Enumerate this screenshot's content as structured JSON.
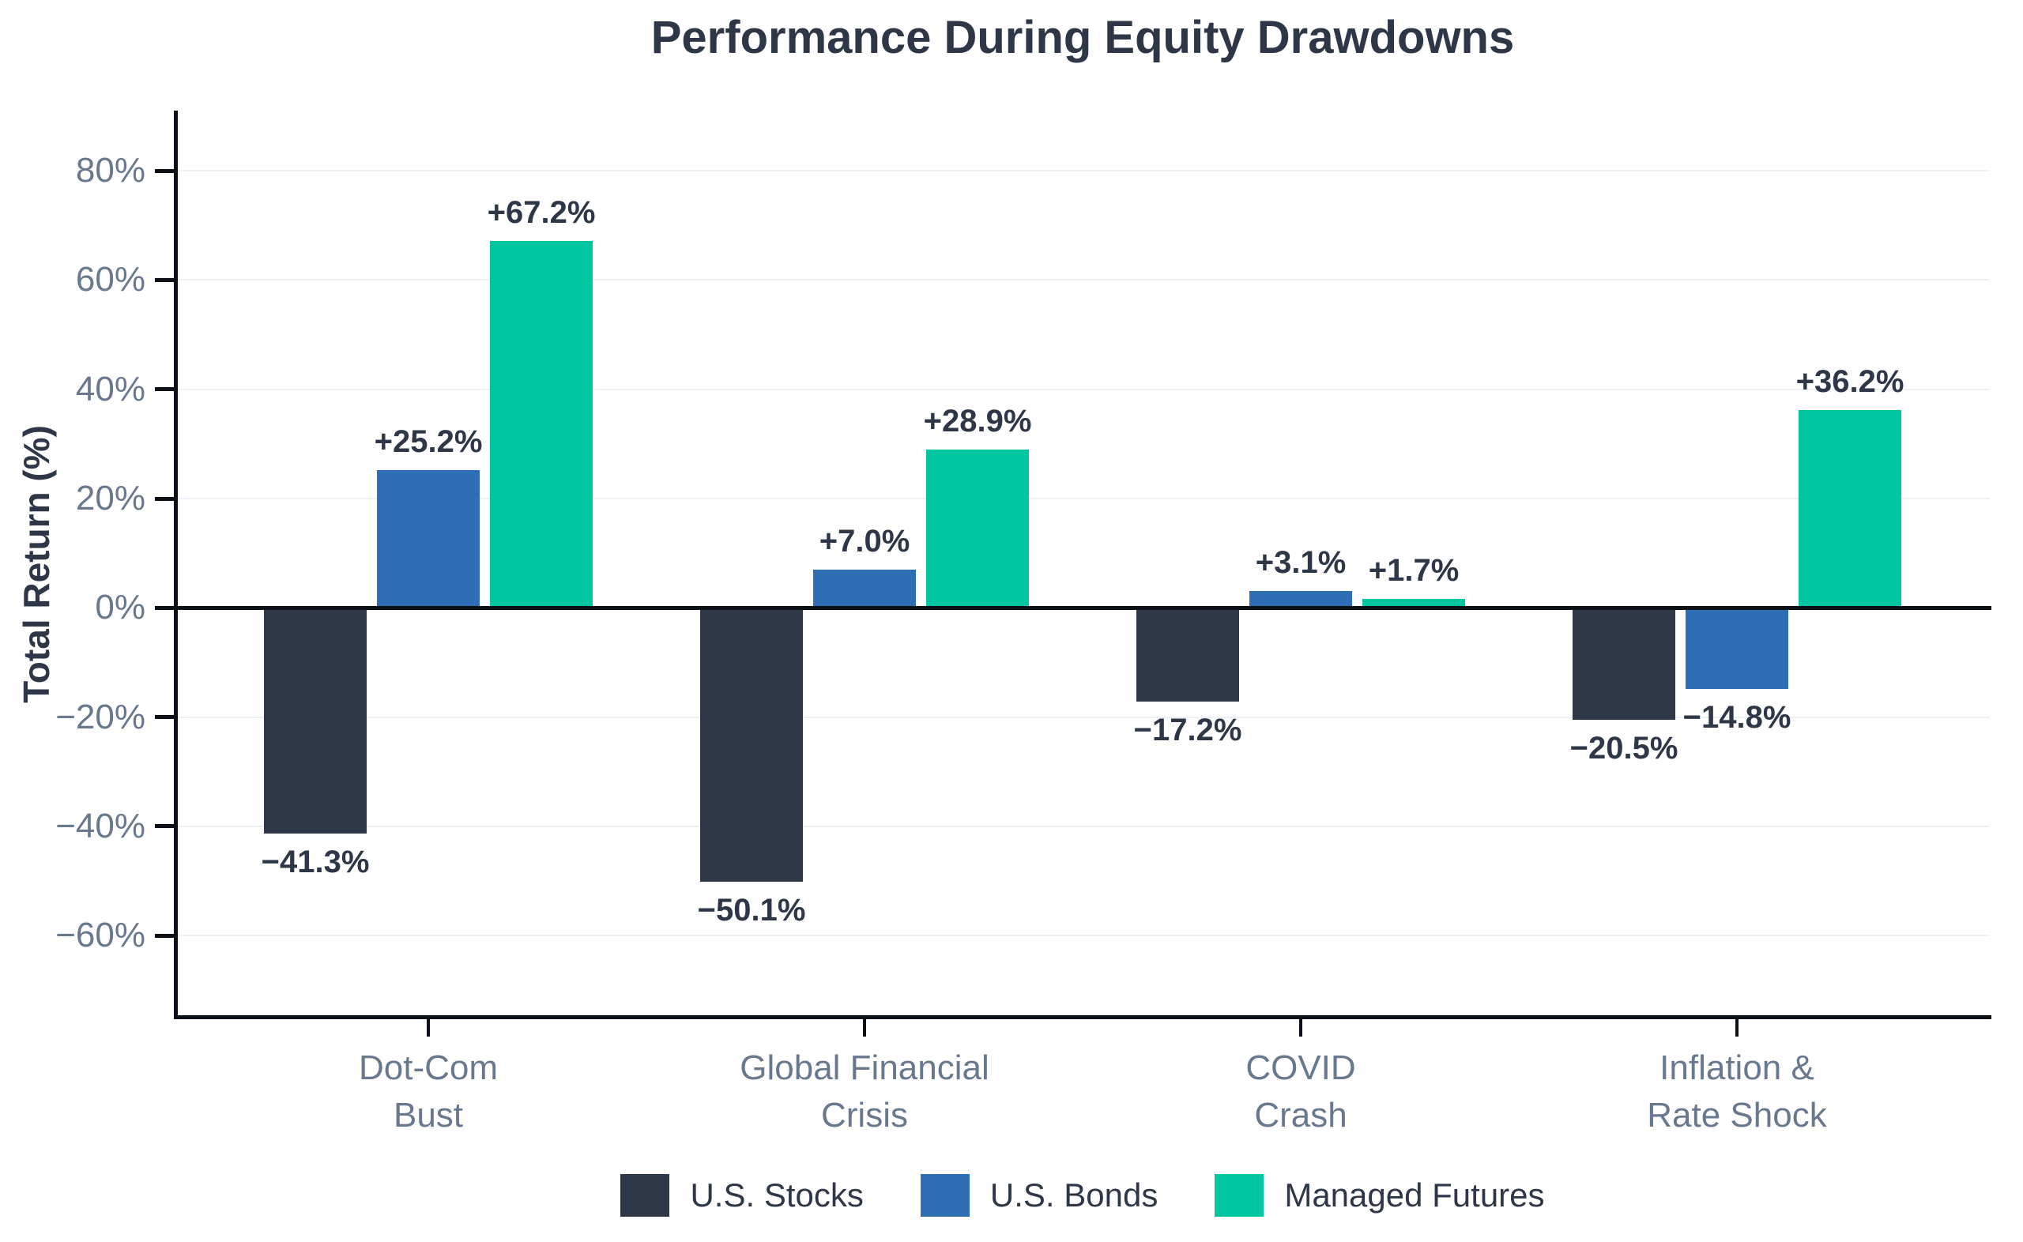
{
  "title": "Performance During Equity Drawdowns",
  "colors": {
    "axis": "#0c1117",
    "grid": "#edf0f5",
    "tick_text": "#68798f",
    "title_text": "#2d3748",
    "value_label_text": "#2d3748",
    "background": "#ffffff",
    "us_stocks": "#2d3748",
    "us_bonds": "#2d6eb5",
    "managed_futures": "#00c7a2"
  },
  "chart_data": {
    "type": "bar",
    "title": "Performance During Equity Drawdowns",
    "ylabel": "Total Return (%)",
    "xlabel": "",
    "ylim": [
      -75,
      91
    ],
    "grid": true,
    "legend_position": "bottom",
    "yticks": [
      {
        "value": 80,
        "label": "80%"
      },
      {
        "value": 60,
        "label": "60%"
      },
      {
        "value": 40,
        "label": "40%"
      },
      {
        "value": 20,
        "label": "20%"
      },
      {
        "value": 0,
        "label": "0%"
      },
      {
        "value": -20,
        "label": "−20%"
      },
      {
        "value": -40,
        "label": "−40%"
      },
      {
        "value": -60,
        "label": "−60%"
      }
    ],
    "categories": [
      "Dot-Com\nBust",
      "Global Financial\nCrisis",
      "COVID\nCrash",
      "Inflation &\nRate Shock"
    ],
    "series": [
      {
        "name": "U.S. Stocks",
        "color": "#2d3748",
        "values": [
          -41.3,
          -50.1,
          -17.2,
          -20.5
        ],
        "labels": [
          "−41.3%",
          "−50.1%",
          "−17.2%",
          "−20.5%"
        ]
      },
      {
        "name": "U.S. Bonds",
        "color": "#2d6eb5",
        "values": [
          25.2,
          7.0,
          3.1,
          -14.8
        ],
        "labels": [
          "+25.2%",
          "+7.0%",
          "+3.1%",
          "−14.8%"
        ]
      },
      {
        "name": "Managed Futures",
        "color": "#00c7a2",
        "values": [
          67.2,
          28.9,
          1.7,
          36.2
        ],
        "labels": [
          "+67.2%",
          "+28.9%",
          "+1.7%",
          "+36.2%"
        ]
      }
    ]
  }
}
